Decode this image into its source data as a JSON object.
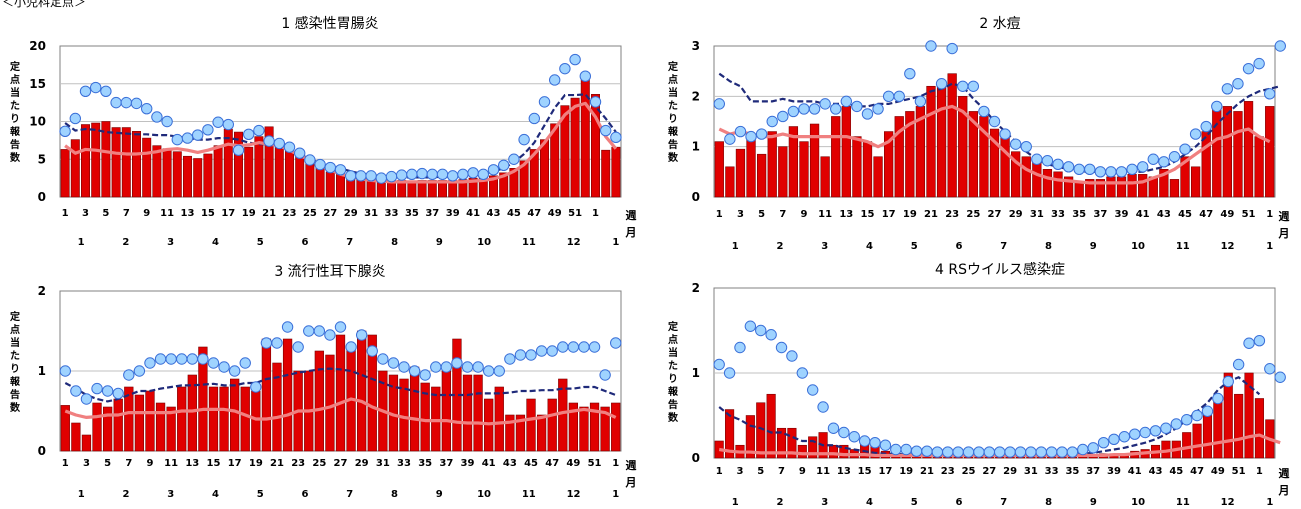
{
  "page": {
    "section_label": "＜小児科定点＞"
  },
  "chart_data": [
    {
      "type": "bar+line",
      "title": "1 感染性胃腸炎",
      "ylabel": "定点当たり報告数",
      "ylim": [
        0,
        20
      ],
      "yticks": [
        "0",
        "5",
        "10",
        "15",
        "20"
      ],
      "week_label": "週",
      "month_label": "月",
      "week_ticks": [
        "1",
        "3",
        "5",
        "7",
        "9",
        "11",
        "13",
        "15",
        "17",
        "19",
        "21",
        "23",
        "25",
        "27",
        "29",
        "31",
        "33",
        "35",
        "37",
        "39",
        "41",
        "43",
        "45",
        "47",
        "49",
        "51",
        "1"
      ],
      "month_ticks": [
        "1",
        "2",
        "3",
        "4",
        "5",
        "6",
        "7",
        "8",
        "9",
        "10",
        "11",
        "12",
        "1"
      ],
      "bars": [
        6.3,
        7.6,
        9.6,
        9.8,
        10.0,
        9.2,
        9.2,
        8.7,
        7.8,
        6.8,
        6.4,
        6.0,
        5.4,
        5.1,
        5.7,
        6.8,
        9.0,
        8.6,
        6.6,
        8.0,
        9.3,
        7.0,
        6.2,
        5.4,
        4.8,
        3.9,
        3.3,
        3.2,
        2.8,
        2.5,
        2.5,
        2.4,
        2.3,
        2.2,
        2.1,
        2.2,
        2.2,
        2.2,
        2.2,
        2.3,
        2.5,
        2.7,
        2.8,
        3.2,
        3.8,
        4.8,
        6.3,
        7.6,
        9.7,
        12.1,
        13.1,
        16.0,
        13.6,
        6.2,
        6.6
      ],
      "dots": [
        8.7,
        10.4,
        14.0,
        14.5,
        14.0,
        12.5,
        12.5,
        12.4,
        11.7,
        10.6,
        10.0,
        7.6,
        7.8,
        8.2,
        8.9,
        9.9,
        9.6,
        6.2,
        8.3,
        8.8,
        7.4,
        7.1,
        6.6,
        5.8,
        4.9,
        4.3,
        3.9,
        3.6,
        2.8,
        2.8,
        2.8,
        2.5,
        2.7,
        2.9,
        3.0,
        3.1,
        3.0,
        3.0,
        2.8,
        3.0,
        3.2,
        3.0,
        3.6,
        4.2,
        5.0,
        7.6,
        10.4,
        12.6,
        15.5,
        17.0,
        18.2,
        16.0,
        12.6,
        8.8,
        7.9
      ],
      "avg": [
        9.8,
        8.8,
        9.0,
        8.9,
        8.6,
        8.5,
        8.4,
        8.3,
        8.3,
        8.2,
        8.2,
        8.0,
        7.8,
        7.6,
        7.6,
        7.8,
        7.8,
        7.6,
        7.2,
        7.0,
        7.0,
        6.6,
        6.2,
        5.7,
        5.0,
        4.5,
        4.2,
        3.8,
        3.4,
        3.1,
        2.9,
        2.8,
        2.7,
        2.6,
        2.6,
        2.6,
        2.6,
        2.7,
        2.7,
        2.7,
        2.7,
        3.0,
        3.4,
        3.8,
        4.6,
        5.7,
        7.2,
        9.5,
        11.8,
        13.5,
        13.5,
        13.6,
        12.0,
        10.4,
        8.6
      ],
      "line": [
        6.8,
        5.8,
        6.3,
        6.2,
        6.0,
        5.8,
        5.7,
        5.7,
        5.8,
        6.0,
        6.3,
        6.4,
        6.2,
        5.9,
        6.2,
        6.6,
        7.0,
        6.8,
        6.9,
        7.2,
        7.0,
        6.8,
        6.2,
        5.5,
        4.9,
        4.2,
        3.6,
        3.0,
        2.7,
        2.4,
        2.2,
        2.1,
        2.0,
        2.0,
        2.0,
        2.0,
        2.0,
        2.0,
        2.0,
        2.0,
        2.1,
        2.2,
        2.4,
        2.8,
        3.4,
        4.3,
        5.7,
        7.2,
        9.0,
        10.9,
        12.0,
        12.4,
        10.6,
        8.0,
        6.4
      ]
    },
    {
      "type": "bar+line",
      "title": "2 水痘",
      "ylabel": "定点当たり報告数",
      "ylim": [
        0,
        3
      ],
      "yticks": [
        "0",
        "1",
        "2",
        "3"
      ],
      "week_label": "週",
      "month_label": "月",
      "week_ticks": [
        "1",
        "3",
        "5",
        "7",
        "9",
        "11",
        "13",
        "15",
        "17",
        "19",
        "21",
        "23",
        "25",
        "27",
        "29",
        "31",
        "33",
        "35",
        "37",
        "39",
        "41",
        "43",
        "45",
        "47",
        "49",
        "51",
        "1"
      ],
      "month_ticks": [
        "1",
        "2",
        "3",
        "4",
        "5",
        "6",
        "7",
        "8",
        "9",
        "10",
        "11",
        "12",
        "1"
      ],
      "bars": [
        1.1,
        0.6,
        0.95,
        1.2,
        0.85,
        1.3,
        1.0,
        1.4,
        1.1,
        1.45,
        0.8,
        1.6,
        1.8,
        1.2,
        1.1,
        0.8,
        1.3,
        1.6,
        1.7,
        1.8,
        2.2,
        2.3,
        2.45,
        2.0,
        1.7,
        1.6,
        1.35,
        1.2,
        0.9,
        0.8,
        0.7,
        0.55,
        0.5,
        0.4,
        0.3,
        0.35,
        0.35,
        0.4,
        0.4,
        0.45,
        0.45,
        0.4,
        0.55,
        0.35,
        0.8,
        0.6,
        1.3,
        1.8,
        1.8,
        1.7,
        1.9,
        1.2,
        1.8
      ],
      "dots": [
        1.85,
        1.15,
        1.3,
        1.2,
        1.25,
        1.5,
        1.6,
        1.7,
        1.75,
        1.75,
        1.85,
        1.75,
        1.9,
        1.8,
        1.65,
        1.75,
        2.0,
        2.0,
        2.45,
        1.9,
        3.0,
        2.25,
        2.95,
        2.2,
        2.2,
        1.7,
        1.5,
        1.25,
        1.05,
        1.0,
        0.75,
        0.72,
        0.65,
        0.6,
        0.55,
        0.55,
        0.5,
        0.5,
        0.5,
        0.55,
        0.6,
        0.75,
        0.7,
        0.8,
        0.95,
        1.25,
        1.4,
        1.8,
        2.15,
        2.25,
        2.55,
        2.65,
        2.05,
        3.0
      ],
      "avg": [
        2.45,
        2.3,
        2.2,
        1.9,
        1.9,
        1.9,
        1.95,
        1.9,
        1.9,
        1.9,
        1.85,
        1.85,
        1.85,
        1.8,
        1.8,
        1.85,
        1.85,
        1.9,
        1.95,
        2.0,
        2.1,
        2.15,
        2.25,
        2.2,
        1.95,
        1.75,
        1.5,
        1.3,
        1.1,
        0.9,
        0.75,
        0.65,
        0.6,
        0.55,
        0.5,
        0.5,
        0.5,
        0.5,
        0.5,
        0.5,
        0.5,
        0.55,
        0.6,
        0.7,
        0.85,
        1.0,
        1.2,
        1.45,
        1.65,
        1.85,
        2.0,
        2.1,
        2.15,
        2.2
      ],
      "line": [
        1.35,
        1.25,
        1.3,
        1.25,
        1.2,
        1.2,
        1.25,
        1.2,
        1.2,
        1.2,
        1.2,
        1.2,
        1.2,
        1.15,
        1.1,
        1.0,
        1.1,
        1.3,
        1.45,
        1.55,
        1.65,
        1.75,
        1.8,
        1.7,
        1.5,
        1.3,
        1.1,
        0.9,
        0.7,
        0.55,
        0.45,
        0.38,
        0.34,
        0.32,
        0.3,
        0.28,
        0.28,
        0.28,
        0.28,
        0.28,
        0.3,
        0.38,
        0.45,
        0.55,
        0.7,
        0.85,
        1.0,
        1.15,
        1.2,
        1.3,
        1.35,
        1.2,
        1.1
      ]
    },
    {
      "type": "bar+line",
      "title": "3 流行性耳下腺炎",
      "ylabel": "定点当たり報告数",
      "ylim": [
        0,
        2
      ],
      "yticks": [
        "0",
        "1",
        "2"
      ],
      "week_label": "週",
      "month_label": "月",
      "week_ticks": [
        "1",
        "3",
        "5",
        "7",
        "9",
        "11",
        "13",
        "15",
        "17",
        "19",
        "21",
        "23",
        "25",
        "27",
        "29",
        "31",
        "33",
        "35",
        "37",
        "39",
        "41",
        "43",
        "45",
        "47",
        "49",
        "51",
        "1"
      ],
      "month_ticks": [
        "1",
        "2",
        "3",
        "4",
        "5",
        "6",
        "7",
        "8",
        "9",
        "10",
        "11",
        "12",
        "1"
      ],
      "bars": [
        0.57,
        0.35,
        0.2,
        0.6,
        0.55,
        0.65,
        0.8,
        0.7,
        0.75,
        0.6,
        0.55,
        0.8,
        0.95,
        1.3,
        0.8,
        0.8,
        0.9,
        0.8,
        0.75,
        1.4,
        1.1,
        1.4,
        1.0,
        1.0,
        1.25,
        1.2,
        1.45,
        1.3,
        1.5,
        1.45,
        1.0,
        0.95,
        0.9,
        1.05,
        0.85,
        0.8,
        1.0,
        1.4,
        0.95,
        0.95,
        0.65,
        0.8,
        0.45,
        0.45,
        0.65,
        0.45,
        0.65,
        0.9,
        0.6,
        0.55,
        0.6,
        0.55,
        0.6
      ],
      "dots": [
        1.0,
        0.75,
        0.65,
        0.78,
        0.75,
        0.72,
        0.95,
        1.0,
        1.1,
        1.15,
        1.15,
        1.15,
        1.15,
        1.15,
        1.1,
        1.05,
        1.0,
        1.1,
        0.8,
        1.35,
        1.35,
        1.55,
        1.3,
        1.5,
        1.5,
        1.45,
        1.55,
        1.3,
        1.45,
        1.25,
        1.15,
        1.1,
        1.05,
        1.0,
        0.95,
        1.05,
        1.05,
        1.1,
        1.05,
        1.05,
        1.0,
        1.0,
        1.15,
        1.2,
        1.2,
        1.25,
        1.25,
        1.3,
        1.3,
        1.3,
        1.3,
        0.95,
        1.35
      ],
      "avg": [
        0.85,
        0.78,
        0.7,
        0.65,
        0.62,
        0.65,
        0.7,
        0.75,
        0.75,
        0.78,
        0.8,
        0.82,
        0.82,
        0.83,
        0.84,
        0.82,
        0.82,
        0.85,
        0.85,
        0.9,
        0.92,
        0.95,
        0.98,
        1.0,
        1.02,
        1.03,
        1.02,
        1.0,
        0.95,
        0.9,
        0.85,
        0.8,
        0.78,
        0.75,
        0.72,
        0.7,
        0.7,
        0.7,
        0.7,
        0.72,
        0.72,
        0.72,
        0.73,
        0.75,
        0.75,
        0.76,
        0.76,
        0.78,
        0.78,
        0.8,
        0.8,
        0.75,
        0.7
      ],
      "line": [
        0.5,
        0.45,
        0.42,
        0.43,
        0.45,
        0.45,
        0.48,
        0.48,
        0.48,
        0.48,
        0.48,
        0.5,
        0.5,
        0.52,
        0.52,
        0.52,
        0.5,
        0.45,
        0.4,
        0.4,
        0.42,
        0.45,
        0.5,
        0.5,
        0.52,
        0.55,
        0.6,
        0.65,
        0.62,
        0.55,
        0.5,
        0.45,
        0.42,
        0.4,
        0.38,
        0.38,
        0.38,
        0.36,
        0.35,
        0.35,
        0.34,
        0.35,
        0.36,
        0.38,
        0.4,
        0.42,
        0.45,
        0.48,
        0.5,
        0.52,
        0.5,
        0.48,
        0.42
      ]
    },
    {
      "type": "bar+line",
      "title": "4 RSウイルス感染症",
      "ylabel": "定点当たり報告数",
      "ylim": [
        0,
        2
      ],
      "yticks": [
        "0",
        "1",
        "2"
      ],
      "week_label": "週",
      "month_label": "月",
      "week_ticks": [
        "1",
        "3",
        "5",
        "7",
        "9",
        "11",
        "13",
        "15",
        "17",
        "19",
        "21",
        "23",
        "25",
        "27",
        "29",
        "31",
        "33",
        "35",
        "37",
        "39",
        "41",
        "43",
        "45",
        "47",
        "49",
        "51",
        "1"
      ],
      "month_ticks": [
        "1",
        "2",
        "3",
        "4",
        "5",
        "6",
        "7",
        "8",
        "9",
        "10",
        "11",
        "12",
        "1"
      ],
      "bars": [
        0.2,
        0.57,
        0.15,
        0.5,
        0.65,
        0.75,
        0.35,
        0.35,
        0.15,
        0.25,
        0.3,
        0.15,
        0.15,
        0.1,
        0.2,
        0.15,
        0.08,
        0.06,
        0.05,
        0.05,
        0.05,
        0.03,
        0.03,
        0.03,
        0.03,
        0.03,
        0.03,
        0.03,
        0.03,
        0.03,
        0.03,
        0.03,
        0.03,
        0.03,
        0.03,
        0.03,
        0.03,
        0.05,
        0.05,
        0.05,
        0.08,
        0.1,
        0.15,
        0.2,
        0.2,
        0.3,
        0.4,
        0.5,
        0.7,
        1.0,
        0.75,
        1.0,
        0.7,
        0.45
      ],
      "dots": [
        1.1,
        1.0,
        1.3,
        1.55,
        1.5,
        1.45,
        1.3,
        1.2,
        1.0,
        0.8,
        0.6,
        0.35,
        0.3,
        0.25,
        0.2,
        0.18,
        0.15,
        0.1,
        0.1,
        0.08,
        0.08,
        0.07,
        0.07,
        0.07,
        0.07,
        0.07,
        0.07,
        0.07,
        0.07,
        0.07,
        0.07,
        0.07,
        0.07,
        0.07,
        0.07,
        0.1,
        0.12,
        0.18,
        0.22,
        0.25,
        0.28,
        0.3,
        0.32,
        0.35,
        0.4,
        0.45,
        0.5,
        0.55,
        0.7,
        0.9,
        1.1,
        1.35,
        1.38,
        1.05,
        0.95
      ],
      "avg": [
        0.6,
        0.5,
        0.45,
        0.38,
        0.35,
        0.3,
        0.3,
        0.25,
        0.2,
        0.2,
        0.15,
        0.15,
        0.12,
        0.1,
        0.08,
        0.06,
        0.05,
        0.05,
        0.04,
        0.04,
        0.03,
        0.03,
        0.03,
        0.03,
        0.03,
        0.03,
        0.03,
        0.03,
        0.03,
        0.03,
        0.03,
        0.03,
        0.03,
        0.03,
        0.04,
        0.05,
        0.06,
        0.08,
        0.1,
        0.12,
        0.15,
        0.18,
        0.22,
        0.28,
        0.35,
        0.45,
        0.55,
        0.65,
        0.8,
        0.9,
        0.95,
        0.85,
        0.75
      ],
      "line": [
        0.1,
        0.08,
        0.07,
        0.07,
        0.06,
        0.06,
        0.06,
        0.06,
        0.05,
        0.05,
        0.05,
        0.05,
        0.04,
        0.04,
        0.04,
        0.03,
        0.03,
        0.03,
        0.03,
        0.03,
        0.03,
        0.03,
        0.03,
        0.03,
        0.03,
        0.03,
        0.03,
        0.03,
        0.03,
        0.03,
        0.03,
        0.03,
        0.03,
        0.03,
        0.03,
        0.03,
        0.03,
        0.03,
        0.04,
        0.04,
        0.05,
        0.06,
        0.07,
        0.08,
        0.1,
        0.12,
        0.14,
        0.16,
        0.18,
        0.2,
        0.22,
        0.25,
        0.27,
        0.22,
        0.18
      ]
    }
  ]
}
